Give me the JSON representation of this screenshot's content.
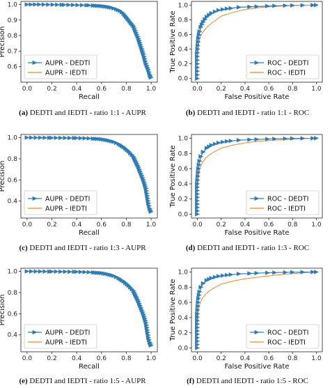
{
  "colors": {
    "dedti": "#2e7cb6",
    "iedti": "#f0862a"
  },
  "chart_data": [
    {
      "id": "a",
      "type": "line",
      "curve": "aupr_11",
      "xlabel": "Recall",
      "ylabel": "Precision",
      "xlim": [
        -0.05,
        1.05
      ],
      "ylim": [
        0.5,
        1.02
      ],
      "xticks": [
        "0.0",
        "0.2",
        "0.4",
        "0.6",
        "0.8",
        "1.0"
      ],
      "yticks": [
        "0.6",
        "0.7",
        "0.8",
        "0.9",
        "1.0"
      ],
      "legend": "bottom-left",
      "series": [
        {
          "name": "AUPR - DEDTI",
          "marker": "triangle"
        },
        {
          "name": "AUPR - IEDTI"
        }
      ],
      "caption_label": "(a)",
      "caption_text": "DEDTI and IEDTI - ratio 1:1 - AUPR"
    },
    {
      "id": "b",
      "type": "line",
      "curve": "roc_11",
      "xlabel": "False Positive Rate",
      "ylabel": "True Positive Rate",
      "xlim": [
        -0.05,
        1.05
      ],
      "ylim": [
        -0.05,
        1.05
      ],
      "xticks": [
        "0.0",
        "0.2",
        "0.4",
        "0.6",
        "0.8",
        "1.0"
      ],
      "yticks": [
        "0.0",
        "0.2",
        "0.4",
        "0.6",
        "0.8",
        "1.0"
      ],
      "legend": "bottom-right",
      "series": [
        {
          "name": "ROC - DEDTI",
          "marker": "triangle"
        },
        {
          "name": "ROC - IEDTI"
        }
      ],
      "caption_label": "(b)",
      "caption_text": "DEDTI and IEDTI - ratio 1:1 - ROC"
    },
    {
      "id": "c",
      "type": "line",
      "curve": "aupr_13",
      "xlabel": "Recall",
      "ylabel": "Precision",
      "xlim": [
        -0.05,
        1.05
      ],
      "ylim": [
        0.24,
        1.03
      ],
      "xticks": [
        "0.0",
        "0.2",
        "0.4",
        "0.6",
        "0.8",
        "1.0"
      ],
      "yticks": [
        "0.4",
        "0.6",
        "0.8",
        "1.0"
      ],
      "legend": "bottom-left",
      "series": [
        {
          "name": "AUPR - DEDTI",
          "marker": "triangle"
        },
        {
          "name": "AUPR - IEDTI"
        }
      ],
      "caption_label": "(c)",
      "caption_text": "DEDTI and IEDTI - ratio 1:3 - AUPR"
    },
    {
      "id": "d",
      "type": "line",
      "curve": "roc_13",
      "xlabel": "False Positive Rate",
      "ylabel": "True Positive Rate",
      "xlim": [
        -0.05,
        1.05
      ],
      "ylim": [
        -0.05,
        1.05
      ],
      "xticks": [
        "0.0",
        "0.2",
        "0.4",
        "0.6",
        "0.8",
        "1.0"
      ],
      "yticks": [
        "0.0",
        "0.2",
        "0.4",
        "0.6",
        "0.8",
        "1.0"
      ],
      "legend": "bottom-right",
      "series": [
        {
          "name": "ROC - DEDTI",
          "marker": "triangle"
        },
        {
          "name": "ROC - IEDTI"
        }
      ],
      "caption_label": "(d)",
      "caption_text": "DEDTI and IEDTI - ratio 1:3 - ROC"
    },
    {
      "id": "e",
      "type": "line",
      "curve": "aupr_15",
      "xlabel": "Recall",
      "ylabel": "Precision",
      "xlim": [
        -0.05,
        1.05
      ],
      "ylim": [
        0.24,
        1.03
      ],
      "xticks": [
        "0.0",
        "0.2",
        "0.4",
        "0.6",
        "0.8",
        "1.0"
      ],
      "yticks": [
        "0.4",
        "0.6",
        "0.8",
        "1.0"
      ],
      "legend": "bottom-left",
      "series": [
        {
          "name": "AUPR - DEDTI",
          "marker": "triangle"
        },
        {
          "name": "AUPR - IEDTI"
        }
      ],
      "caption_label": "(e)",
      "caption_text": "DEDTI and IEDTI - ratio 1:5 - AUPR"
    },
    {
      "id": "f",
      "type": "line",
      "curve": "roc_15",
      "xlabel": "False Positive Rate",
      "ylabel": "True Positive Rate",
      "xlim": [
        -0.05,
        1.05
      ],
      "ylim": [
        -0.05,
        1.05
      ],
      "xticks": [
        "0.0",
        "0.2",
        "0.4",
        "0.6",
        "0.8",
        "1.0"
      ],
      "yticks": [
        "0.0",
        "0.2",
        "0.4",
        "0.6",
        "0.8",
        "1.0"
      ],
      "legend": "bottom-right",
      "series": [
        {
          "name": "ROC - DEDTI",
          "marker": "triangle"
        },
        {
          "name": "ROC - IEDTI"
        }
      ],
      "caption_label": "(f)",
      "caption_text": "DEDTI and IEDTI - ratio 1:5 - ROC"
    }
  ],
  "curves": {
    "aupr_11": {
      "dedti": [
        [
          0.0,
          1.0
        ],
        [
          0.1,
          1.0
        ],
        [
          0.3,
          0.998
        ],
        [
          0.5,
          0.995
        ],
        [
          0.6,
          0.99
        ],
        [
          0.65,
          0.985
        ],
        [
          0.68,
          0.98
        ],
        [
          0.72,
          0.97
        ],
        [
          0.75,
          0.96
        ],
        [
          0.78,
          0.94
        ],
        [
          0.8,
          0.92
        ],
        [
          0.82,
          0.9
        ],
        [
          0.84,
          0.88
        ],
        [
          0.86,
          0.86
        ],
        [
          0.88,
          0.82
        ],
        [
          0.9,
          0.78
        ],
        [
          0.92,
          0.73
        ],
        [
          0.94,
          0.68
        ],
        [
          0.96,
          0.62
        ],
        [
          0.98,
          0.58
        ],
        [
          0.99,
          0.55
        ],
        [
          1.0,
          0.53
        ]
      ],
      "iedti": [
        [
          0.0,
          1.0
        ],
        [
          0.1,
          1.0
        ],
        [
          0.3,
          0.997
        ],
        [
          0.5,
          0.993
        ],
        [
          0.6,
          0.988
        ],
        [
          0.65,
          0.983
        ],
        [
          0.68,
          0.978
        ],
        [
          0.72,
          0.968
        ],
        [
          0.75,
          0.958
        ],
        [
          0.78,
          0.938
        ],
        [
          0.8,
          0.918
        ],
        [
          0.82,
          0.898
        ],
        [
          0.84,
          0.878
        ],
        [
          0.86,
          0.858
        ],
        [
          0.88,
          0.818
        ],
        [
          0.9,
          0.778
        ],
        [
          0.92,
          0.728
        ],
        [
          0.94,
          0.678
        ],
        [
          0.96,
          0.618
        ],
        [
          0.98,
          0.578
        ],
        [
          0.99,
          0.548
        ],
        [
          1.0,
          0.525
        ]
      ]
    },
    "roc_11": {
      "dedti": [
        [
          0.0,
          0.0
        ],
        [
          0.0,
          0.35
        ],
        [
          0.01,
          0.55
        ],
        [
          0.02,
          0.64
        ],
        [
          0.03,
          0.7
        ],
        [
          0.05,
          0.77
        ],
        [
          0.08,
          0.84
        ],
        [
          0.12,
          0.89
        ],
        [
          0.18,
          0.93
        ],
        [
          0.25,
          0.95
        ],
        [
          0.35,
          0.97
        ],
        [
          0.5,
          0.98
        ],
        [
          0.65,
          0.99
        ],
        [
          0.8,
          0.995
        ],
        [
          1.0,
          1.0
        ]
      ],
      "iedti": [
        [
          0.0,
          0.0
        ],
        [
          0.0,
          0.25
        ],
        [
          0.01,
          0.45
        ],
        [
          0.02,
          0.55
        ],
        [
          0.04,
          0.62
        ],
        [
          0.07,
          0.68
        ],
        [
          0.1,
          0.73
        ],
        [
          0.15,
          0.79
        ],
        [
          0.2,
          0.85
        ],
        [
          0.3,
          0.9
        ],
        [
          0.4,
          0.94
        ],
        [
          0.55,
          0.97
        ],
        [
          0.7,
          0.985
        ],
        [
          0.85,
          0.995
        ],
        [
          1.0,
          1.0
        ]
      ]
    },
    "aupr_13": {
      "dedti": [
        [
          0.0,
          1.0
        ],
        [
          0.2,
          0.998
        ],
        [
          0.4,
          0.996
        ],
        [
          0.5,
          0.993
        ],
        [
          0.6,
          0.985
        ],
        [
          0.65,
          0.975
        ],
        [
          0.7,
          0.96
        ],
        [
          0.74,
          0.94
        ],
        [
          0.78,
          0.91
        ],
        [
          0.82,
          0.87
        ],
        [
          0.86,
          0.82
        ],
        [
          0.88,
          0.77
        ],
        [
          0.9,
          0.72
        ],
        [
          0.92,
          0.66
        ],
        [
          0.94,
          0.6
        ],
        [
          0.96,
          0.52
        ],
        [
          0.97,
          0.45
        ],
        [
          0.98,
          0.38
        ],
        [
          0.99,
          0.33
        ],
        [
          1.0,
          0.3
        ]
      ],
      "iedti": [
        [
          0.0,
          1.0
        ],
        [
          0.2,
          0.997
        ],
        [
          0.4,
          0.994
        ],
        [
          0.5,
          0.99
        ],
        [
          0.6,
          0.982
        ],
        [
          0.65,
          0.972
        ],
        [
          0.7,
          0.957
        ],
        [
          0.74,
          0.937
        ],
        [
          0.78,
          0.907
        ],
        [
          0.82,
          0.867
        ],
        [
          0.86,
          0.817
        ],
        [
          0.88,
          0.767
        ],
        [
          0.9,
          0.717
        ],
        [
          0.92,
          0.657
        ],
        [
          0.94,
          0.597
        ],
        [
          0.96,
          0.517
        ],
        [
          0.97,
          0.447
        ],
        [
          0.98,
          0.377
        ],
        [
          0.99,
          0.327
        ],
        [
          1.0,
          0.295
        ]
      ]
    },
    "roc_13": {
      "dedti": [
        [
          0.0,
          0.0
        ],
        [
          0.0,
          0.4
        ],
        [
          0.01,
          0.6
        ],
        [
          0.02,
          0.7
        ],
        [
          0.03,
          0.76
        ],
        [
          0.05,
          0.82
        ],
        [
          0.08,
          0.87
        ],
        [
          0.12,
          0.91
        ],
        [
          0.18,
          0.94
        ],
        [
          0.25,
          0.96
        ],
        [
          0.35,
          0.975
        ],
        [
          0.5,
          0.985
        ],
        [
          0.65,
          0.992
        ],
        [
          0.8,
          0.997
        ],
        [
          1.0,
          1.0
        ]
      ],
      "iedti": [
        [
          0.0,
          0.0
        ],
        [
          0.0,
          0.3
        ],
        [
          0.01,
          0.5
        ],
        [
          0.02,
          0.6
        ],
        [
          0.04,
          0.68
        ],
        [
          0.07,
          0.74
        ],
        [
          0.1,
          0.78
        ],
        [
          0.15,
          0.83
        ],
        [
          0.2,
          0.87
        ],
        [
          0.3,
          0.91
        ],
        [
          0.4,
          0.94
        ],
        [
          0.55,
          0.965
        ],
        [
          0.7,
          0.98
        ],
        [
          0.85,
          0.99
        ],
        [
          1.0,
          1.0
        ]
      ]
    },
    "aupr_15": {
      "dedti": [
        [
          0.0,
          1.0
        ],
        [
          0.2,
          0.998
        ],
        [
          0.4,
          0.996
        ],
        [
          0.5,
          0.992
        ],
        [
          0.6,
          0.984
        ],
        [
          0.65,
          0.974
        ],
        [
          0.7,
          0.958
        ],
        [
          0.74,
          0.935
        ],
        [
          0.78,
          0.905
        ],
        [
          0.82,
          0.865
        ],
        [
          0.86,
          0.815
        ],
        [
          0.88,
          0.765
        ],
        [
          0.9,
          0.715
        ],
        [
          0.92,
          0.655
        ],
        [
          0.94,
          0.595
        ],
        [
          0.96,
          0.515
        ],
        [
          0.97,
          0.445
        ],
        [
          0.98,
          0.375
        ],
        [
          0.99,
          0.33
        ],
        [
          1.0,
          0.3
        ]
      ],
      "iedti": [
        [
          0.0,
          1.0
        ],
        [
          0.2,
          0.997
        ],
        [
          0.4,
          0.994
        ],
        [
          0.5,
          0.989
        ],
        [
          0.6,
          0.981
        ],
        [
          0.65,
          0.971
        ],
        [
          0.7,
          0.955
        ],
        [
          0.74,
          0.932
        ],
        [
          0.78,
          0.902
        ],
        [
          0.82,
          0.862
        ],
        [
          0.86,
          0.812
        ],
        [
          0.88,
          0.762
        ],
        [
          0.9,
          0.712
        ],
        [
          0.92,
          0.652
        ],
        [
          0.94,
          0.592
        ],
        [
          0.96,
          0.512
        ],
        [
          0.97,
          0.442
        ],
        [
          0.98,
          0.372
        ],
        [
          0.99,
          0.327
        ],
        [
          1.0,
          0.295
        ]
      ]
    },
    "roc_15": {
      "dedti": [
        [
          0.0,
          0.0
        ],
        [
          0.0,
          0.45
        ],
        [
          0.01,
          0.65
        ],
        [
          0.02,
          0.74
        ],
        [
          0.03,
          0.8
        ],
        [
          0.05,
          0.85
        ],
        [
          0.08,
          0.89
        ],
        [
          0.12,
          0.92
        ],
        [
          0.18,
          0.945
        ],
        [
          0.25,
          0.96
        ],
        [
          0.35,
          0.975
        ],
        [
          0.5,
          0.985
        ],
        [
          0.65,
          0.992
        ],
        [
          0.8,
          0.997
        ],
        [
          1.0,
          1.0
        ]
      ],
      "iedti": [
        [
          0.0,
          0.0
        ],
        [
          0.0,
          0.3
        ],
        [
          0.01,
          0.5
        ],
        [
          0.02,
          0.58
        ],
        [
          0.04,
          0.65
        ],
        [
          0.07,
          0.71
        ],
        [
          0.1,
          0.75
        ],
        [
          0.15,
          0.8
        ],
        [
          0.2,
          0.84
        ],
        [
          0.3,
          0.88
        ],
        [
          0.4,
          0.91
        ],
        [
          0.55,
          0.94
        ],
        [
          0.7,
          0.965
        ],
        [
          0.85,
          0.985
        ],
        [
          1.0,
          1.0
        ]
      ]
    }
  }
}
